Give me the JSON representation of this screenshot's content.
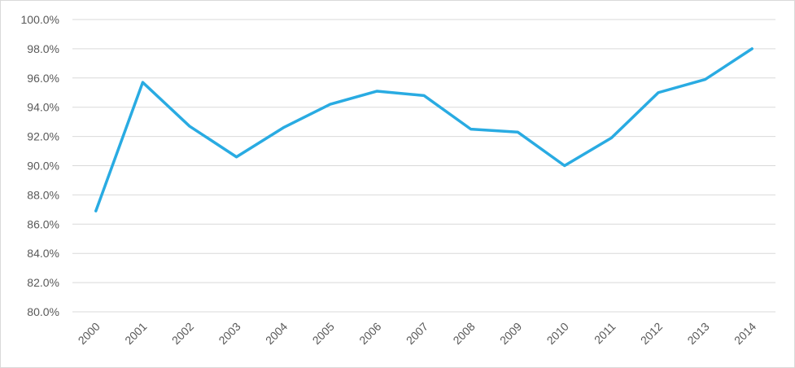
{
  "chart_data": {
    "type": "line",
    "title": "",
    "xlabel": "",
    "ylabel": "",
    "categories": [
      "2000",
      "2001",
      "2002",
      "2003",
      "2004",
      "2005",
      "2006",
      "2007",
      "2008",
      "2009",
      "2010",
      "2011",
      "2012",
      "2013",
      "2014"
    ],
    "series": [
      {
        "color": "#29abe2",
        "values": [
          86.9,
          95.7,
          92.7,
          90.6,
          92.6,
          94.2,
          95.1,
          94.8,
          92.5,
          92.3,
          90.0,
          91.9,
          95.0,
          95.9,
          98.0
        ]
      }
    ],
    "ylim": [
      80,
      100
    ],
    "yticks": [
      "80.0%",
      "82.0%",
      "84.0%",
      "86.0%",
      "88.0%",
      "90.0%",
      "92.0%",
      "94.0%",
      "96.0%",
      "98.0%",
      "100.0%"
    ],
    "grid": true,
    "legend": "none"
  }
}
